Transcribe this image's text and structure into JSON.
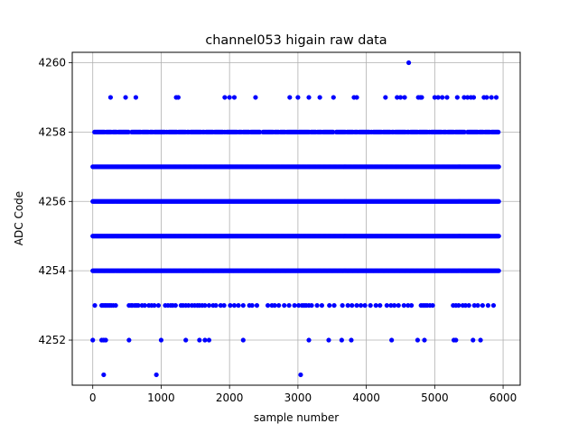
{
  "chart_data": {
    "type": "scatter",
    "title": "channel053 higain raw data",
    "xlabel": "sample number",
    "ylabel": "ADC Code",
    "xlim": [
      -300,
      6250
    ],
    "ylim": [
      4250.7,
      4260.3
    ],
    "xticks": [
      0,
      1000,
      2000,
      3000,
      4000,
      5000,
      6000
    ],
    "yticks": [
      4252,
      4254,
      4256,
      4258,
      4260
    ],
    "grid": true,
    "color": "#0000ff",
    "x_range": [
      0,
      5940
    ],
    "dense_levels": [
      4254,
      4255,
      4256,
      4257
    ],
    "semi_dense_levels": [
      4258
    ],
    "sparse_points": {
      "4253": [
        30,
        130,
        150,
        175,
        195,
        220,
        245,
        270,
        300,
        335,
        530,
        560,
        580,
        615,
        640,
        665,
        720,
        760,
        820,
        860,
        900,
        960,
        1060,
        1100,
        1140,
        1170,
        1210,
        1290,
        1320,
        1360,
        1400,
        1450,
        1490,
        1530,
        1560,
        1600,
        1640,
        1700,
        1760,
        1800,
        1870,
        1920,
        2010,
        2070,
        2130,
        2200,
        2290,
        2330,
        2400,
        2560,
        2620,
        2660,
        2720,
        2800,
        2870,
        2950,
        3010,
        3060,
        3090,
        3120,
        3160,
        3200,
        3280,
        3350,
        3460,
        3530,
        3650,
        3730,
        3790,
        3860,
        3920,
        3980,
        4060,
        4140,
        4200,
        4300,
        4360,
        4410,
        4470,
        4550,
        4610,
        4660,
        4800,
        4830,
        4860,
        4890,
        4930,
        4970,
        5270,
        5310,
        5350,
        5410,
        5450,
        5500,
        5580,
        5630,
        5700,
        5780,
        5860
      ],
      "4252": [
        0,
        130,
        160,
        190,
        530,
        1000,
        1360,
        1560,
        1640,
        1700,
        2200,
        3160,
        3450,
        3640,
        3780,
        4370,
        4750,
        4850,
        5280,
        5310,
        5560,
        5670
      ],
      "4251": [
        160,
        930,
        3040
      ],
      "4259": [
        260,
        480,
        630,
        1220,
        1250,
        1930,
        2000,
        2070,
        2380,
        2880,
        3000,
        3160,
        3320,
        3520,
        3820,
        3860,
        4280,
        4450,
        4500,
        4560,
        4760,
        4790,
        4810,
        5000,
        5050,
        5110,
        5180,
        5330,
        5430,
        5480,
        5530,
        5570,
        5720,
        5760,
        5830,
        5900
      ],
      "4260": [
        4620
      ]
    }
  }
}
